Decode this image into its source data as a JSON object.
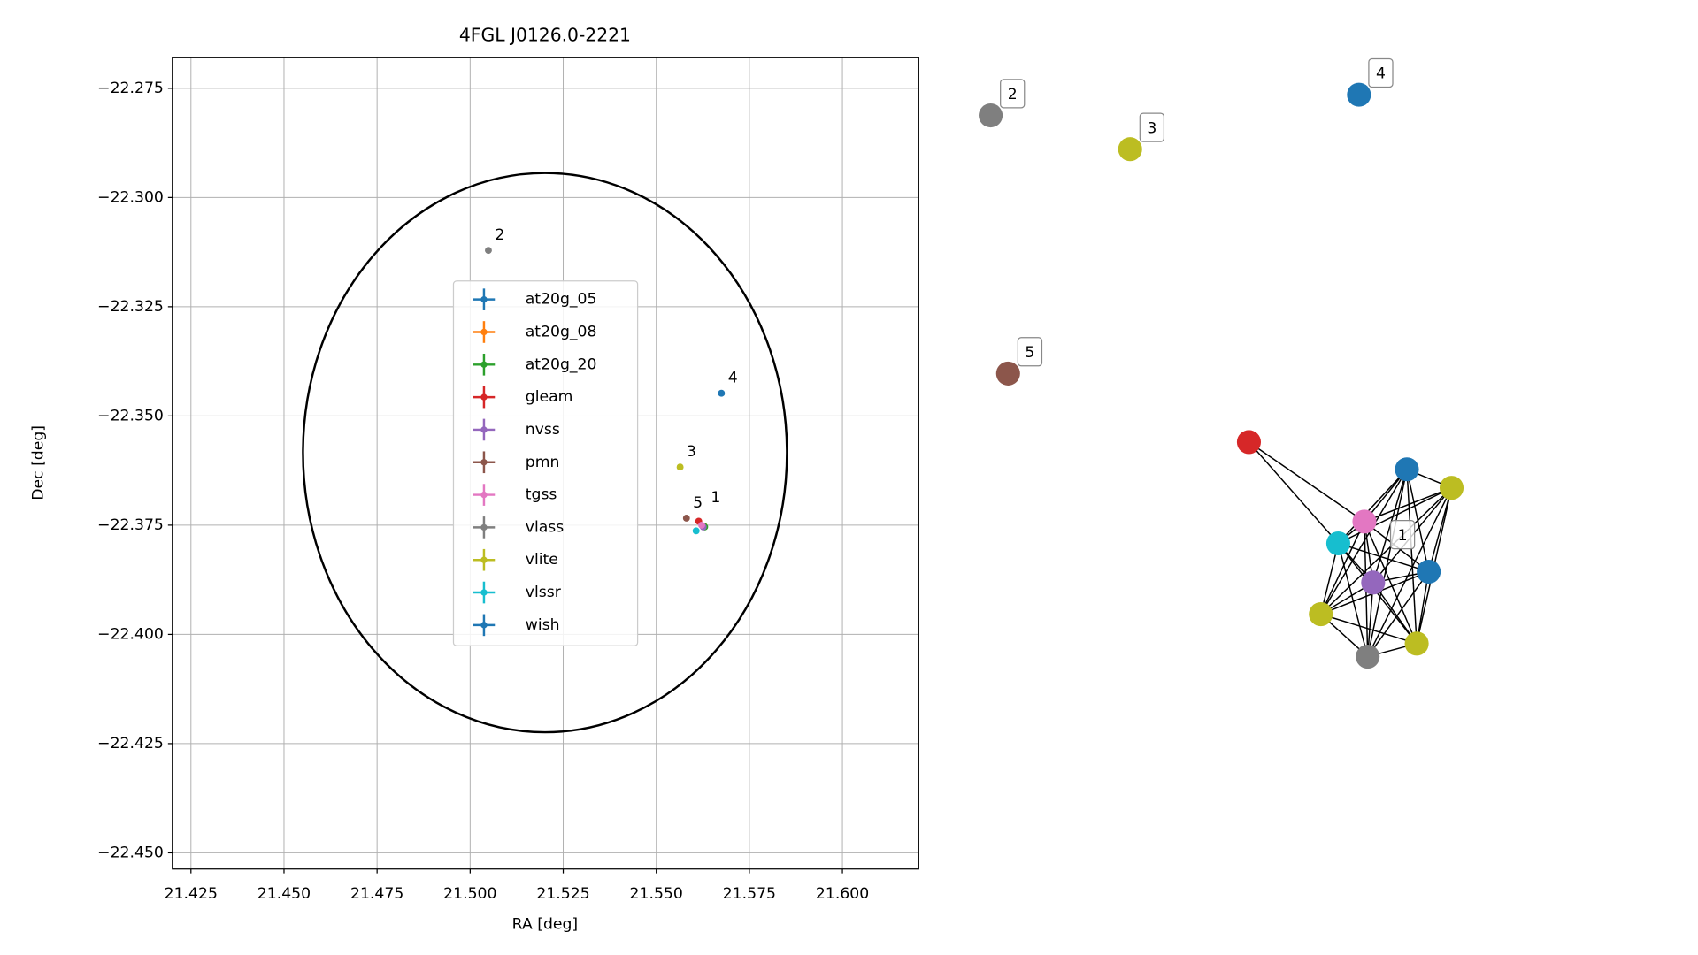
{
  "chart_data": [
    {
      "type": "scatter",
      "title": "4FGL J0126.0-2221",
      "xlabel": "RA [deg]",
      "ylabel": "Dec [deg]",
      "xlim": [
        21.42,
        21.6205
      ],
      "ylim": [
        -22.4537,
        -22.268
      ],
      "xticks": [
        21.425,
        {
          "value": 21.45,
          "label": "21.450"
        },
        21.475,
        {
          "value": 21.5,
          "label": "21.500"
        },
        21.525,
        {
          "value": 21.55,
          "label": "21.550"
        },
        21.575,
        {
          "value": 21.6,
          "label": "21.600"
        }
      ],
      "yticks": [
        {
          "value": -22.275,
          "label": "−22.275"
        },
        {
          "value": -22.3,
          "label": "−22.300"
        },
        {
          "value": -22.325,
          "label": "−22.325"
        },
        {
          "value": -22.35,
          "label": "−22.350"
        },
        {
          "value": -22.375,
          "label": "−22.375"
        },
        {
          "value": -22.4,
          "label": "−22.400"
        },
        {
          "value": -22.425,
          "label": "−22.425"
        },
        {
          "value": -22.45,
          "label": "−22.450"
        }
      ],
      "grid": true,
      "ellipse": {
        "x": 21.5201,
        "y": -22.3584,
        "rx": 0.065,
        "ry": 0.064
      },
      "series": [
        {
          "name": "at20g_05",
          "color": "#1f77b4",
          "x": [
            21.5628
          ],
          "y": [
            -22.3752
          ]
        },
        {
          "name": "at20g_08",
          "color": "#ff7f0e",
          "x": [
            21.5628
          ],
          "y": [
            -22.3752
          ]
        },
        {
          "name": "at20g_20",
          "color": "#2ca02c",
          "x": [
            21.563
          ],
          "y": [
            -22.3754
          ]
        },
        {
          "name": "gleam",
          "color": "#d62728",
          "x": [
            21.5614
          ],
          "y": [
            -22.3741
          ]
        },
        {
          "name": "nvss",
          "color": "#9467bd",
          "x": [
            21.5626
          ],
          "y": [
            -22.3754
          ]
        },
        {
          "name": "pmn",
          "color": "#8c564b",
          "x": [
            21.5581
          ],
          "y": [
            -22.3734
          ]
        },
        {
          "name": "tgss",
          "color": "#e377c2",
          "x": [
            21.5622
          ],
          "y": [
            -22.375
          ]
        },
        {
          "name": "vlass",
          "color": "#7f7f7f",
          "x": [
            21.5049
          ],
          "y": [
            -22.3121
          ]
        },
        {
          "name": "vlite",
          "color": "#bcbd22",
          "x": [
            21.5564
          ],
          "y": [
            -22.3617
          ]
        },
        {
          "name": "vlssr",
          "color": "#17becf",
          "x": [
            21.5607
          ],
          "y": [
            -22.3763
          ]
        },
        {
          "name": "wish",
          "color": "#1f77b4",
          "x": [
            21.5675
          ],
          "y": [
            -22.3448
          ]
        }
      ],
      "annotations": [
        {
          "text": "1",
          "x": 21.5629,
          "y": -22.3722
        },
        {
          "text": "2",
          "x": 21.5049,
          "y": -22.3121
        },
        {
          "text": "3",
          "x": 21.5564,
          "y": -22.3617
        },
        {
          "text": "4",
          "x": 21.5675,
          "y": -22.3448
        },
        {
          "text": "5",
          "x": 21.5581,
          "y": -22.3734
        }
      ]
    },
    {
      "type": "network",
      "nodes": [
        {
          "color": "#7f7f7f",
          "label": "2"
        },
        {
          "color": "#bcbd22",
          "label": "3"
        },
        {
          "color": "#1f77b4",
          "label": "4"
        },
        {
          "color": "#8c564b",
          "label": "5"
        },
        {
          "color": "#d62728"
        },
        {
          "color": "#1f77b4"
        },
        {
          "color": "#bcbd22"
        },
        {
          "color": "#e377c2"
        },
        {
          "color": "#17becf",
          "label": "1"
        },
        {
          "color": "#1f77b4"
        },
        {
          "color": "#9467bd"
        },
        {
          "color": "#bcbd22"
        },
        {
          "color": "#bcbd22"
        },
        {
          "color": "#7f7f7f"
        }
      ],
      "edges": [
        [
          4,
          7
        ],
        [
          4,
          8
        ],
        [
          5,
          6
        ],
        [
          5,
          7
        ],
        [
          5,
          8
        ],
        [
          5,
          9
        ],
        [
          5,
          10
        ],
        [
          5,
          11
        ],
        [
          5,
          12
        ],
        [
          5,
          13
        ],
        [
          6,
          7
        ],
        [
          6,
          8
        ],
        [
          6,
          9
        ],
        [
          6,
          10
        ],
        [
          6,
          11
        ],
        [
          6,
          12
        ],
        [
          6,
          13
        ],
        [
          7,
          8
        ],
        [
          7,
          9
        ],
        [
          7,
          10
        ],
        [
          7,
          11
        ],
        [
          7,
          12
        ],
        [
          7,
          13
        ],
        [
          8,
          9
        ],
        [
          8,
          10
        ],
        [
          8,
          11
        ],
        [
          8,
          12
        ],
        [
          8,
          13
        ],
        [
          9,
          10
        ],
        [
          9,
          11
        ],
        [
          9,
          12
        ],
        [
          9,
          13
        ],
        [
          10,
          11
        ],
        [
          10,
          12
        ],
        [
          10,
          13
        ],
        [
          11,
          12
        ],
        [
          11,
          13
        ],
        [
          12,
          13
        ]
      ]
    }
  ]
}
